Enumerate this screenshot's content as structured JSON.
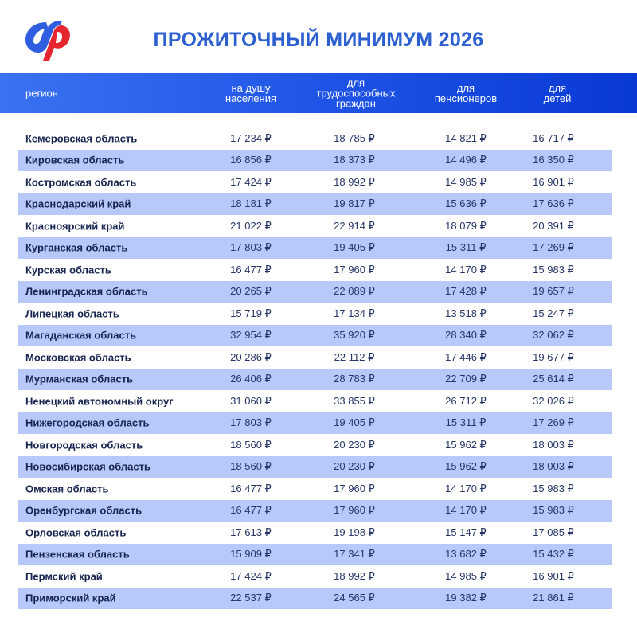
{
  "title": "ПРОЖИТОЧНЫЙ МИНИМУМ 2026",
  "logo": {
    "name": "sfr-logo",
    "colors": {
      "blue": "#2f5ee0",
      "red": "#e5262f"
    }
  },
  "colors": {
    "header_start": "#3a72f2",
    "header_end": "#0839d4",
    "row_alt": "#b7c8f9",
    "title": "#2c5fd0"
  },
  "columns": [
    "регион",
    "на душу\nнаселения",
    "для\nтрудоспособных\nграждан",
    "для\nпенсионеров",
    "для\nдетей"
  ],
  "rows": [
    [
      "Кемеровская область",
      "17 234 ₽",
      "18 785 ₽",
      "14 821 ₽",
      "16 717 ₽"
    ],
    [
      "Кировская область",
      "16 856 ₽",
      "18 373 ₽",
      "14 496 ₽",
      "16 350 ₽"
    ],
    [
      "Костромская область",
      "17 424 ₽",
      "18 992 ₽",
      "14 985 ₽",
      "16 901 ₽"
    ],
    [
      "Краснодарский край",
      "18 181 ₽",
      "19 817 ₽",
      "15 636 ₽",
      "17 636 ₽"
    ],
    [
      "Красноярский край",
      "21 022 ₽",
      "22 914 ₽",
      "18 079 ₽",
      "20 391 ₽"
    ],
    [
      "Курганская область",
      "17 803 ₽",
      "19 405 ₽",
      "15 311 ₽",
      "17 269 ₽"
    ],
    [
      "Курская область",
      "16 477 ₽",
      "17 960 ₽",
      "14 170 ₽",
      "15 983 ₽"
    ],
    [
      "Ленинградская область",
      "20 265 ₽",
      "22 089 ₽",
      "17 428 ₽",
      "19 657 ₽"
    ],
    [
      "Липецкая область",
      "15 719 ₽",
      "17 134 ₽",
      "13 518 ₽",
      "15 247 ₽"
    ],
    [
      "Магаданская область",
      "32 954 ₽",
      "35 920 ₽",
      "28 340 ₽",
      "32 062 ₽"
    ],
    [
      "Московская область",
      "20 286 ₽",
      "22 112 ₽",
      "17 446 ₽",
      "19 677 ₽"
    ],
    [
      "Мурманская область",
      "26 406 ₽",
      "28 783 ₽",
      "22 709 ₽",
      "25 614 ₽"
    ],
    [
      "Ненецкий автономный округ",
      "31 060 ₽",
      "33 855 ₽",
      "26 712 ₽",
      "32 026 ₽"
    ],
    [
      "Нижегородская область",
      "17 803 ₽",
      "19 405 ₽",
      "15 311 ₽",
      "17 269 ₽"
    ],
    [
      "Новгородская область",
      "18 560 ₽",
      "20 230 ₽",
      "15 962 ₽",
      "18 003 ₽"
    ],
    [
      "Новосибирская область",
      "18 560 ₽",
      "20 230 ₽",
      "15 962 ₽",
      "18 003 ₽"
    ],
    [
      "Омская область",
      "16 477 ₽",
      "17 960 ₽",
      "14 170 ₽",
      "15 983 ₽"
    ],
    [
      "Оренбургская область",
      "16 477 ₽",
      "17 960 ₽",
      "14 170 ₽",
      "15 983 ₽"
    ],
    [
      "Орловская область",
      "17 613 ₽",
      "19 198 ₽",
      "15 147 ₽",
      "17 085 ₽"
    ],
    [
      "Пензенская область",
      "15 909 ₽",
      "17 341 ₽",
      "13 682 ₽",
      "15 432 ₽"
    ],
    [
      "Пермский край",
      "17 424 ₽",
      "18 992 ₽",
      "14 985 ₽",
      "16 901 ₽"
    ],
    [
      "Приморский край",
      "22 537 ₽",
      "24 565 ₽",
      "19 382 ₽",
      "21 861 ₽"
    ]
  ]
}
